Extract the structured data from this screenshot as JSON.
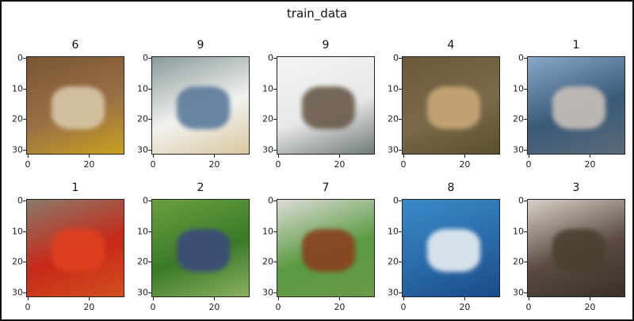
{
  "figure": {
    "suptitle": "train_data",
    "panels": [
      {
        "label": "6",
        "colors": [
          "#7a5535",
          "#9a7045",
          "#d8c8a8",
          "#c8a020"
        ]
      },
      {
        "label": "9",
        "colors": [
          "#8a9a9a",
          "#f2f2f0",
          "#5a7a9a",
          "#d8c8a0"
        ]
      },
      {
        "label": "9",
        "colors": [
          "#f4f4f4",
          "#e8e8e8",
          "#6a5a4a",
          "#707a78"
        ]
      },
      {
        "label": "4",
        "colors": [
          "#6a5a3a",
          "#7a6a48",
          "#c8a878",
          "#5a5030"
        ]
      },
      {
        "label": "1",
        "colors": [
          "#8aa8c8",
          "#3a5a78",
          "#c8c0b8",
          "#5a6a7a"
        ]
      },
      {
        "label": "1",
        "colors": [
          "#8a7a6a",
          "#c82818",
          "#e04020",
          "#d05020"
        ]
      },
      {
        "label": "2",
        "colors": [
          "#6aa040",
          "#3a7a28",
          "#3a4a7a",
          "#8ab060"
        ]
      },
      {
        "label": "7",
        "colors": [
          "#dcdcd8",
          "#5a9a40",
          "#8a4020",
          "#6a9a48"
        ]
      },
      {
        "label": "8",
        "colors": [
          "#3a8ac8",
          "#2a6aa8",
          "#e8eef4",
          "#1a4a8a"
        ]
      },
      {
        "label": "3",
        "colors": [
          "#d8d0c8",
          "#5a4a40",
          "#4a4030",
          "#3a3028"
        ]
      }
    ],
    "x_ticks": [
      "0",
      "20"
    ],
    "y_ticks": [
      "0",
      "10",
      "20",
      "30"
    ]
  }
}
